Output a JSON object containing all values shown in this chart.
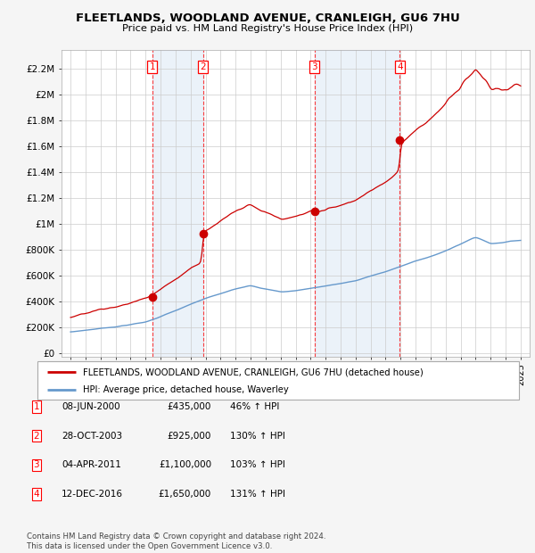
{
  "title": "FLEETLANDS, WOODLAND AVENUE, CRANLEIGH, GU6 7HU",
  "subtitle": "Price paid vs. HM Land Registry's House Price Index (HPI)",
  "ylabel_ticks": [
    "£0",
    "£200K",
    "£400K",
    "£600K",
    "£800K",
    "£1M",
    "£1.2M",
    "£1.4M",
    "£1.6M",
    "£1.8M",
    "£2M",
    "£2.2M"
  ],
  "ytick_values": [
    0,
    200000,
    400000,
    600000,
    800000,
    1000000,
    1200000,
    1400000,
    1600000,
    1800000,
    2000000,
    2200000
  ],
  "x_start_year": 1995,
  "x_end_year": 2025,
  "sale_times": [
    2000.44,
    2003.83,
    2011.25,
    2016.95
  ],
  "sale_prices": [
    435000,
    925000,
    1100000,
    1650000
  ],
  "sale_labels": [
    "1",
    "2",
    "3",
    "4"
  ],
  "red_line_color": "#cc0000",
  "blue_line_color": "#6699cc",
  "shade_color": "#dce8f5",
  "legend_red_label": "FLEETLANDS, WOODLAND AVENUE, CRANLEIGH, GU6 7HU (detached house)",
  "legend_blue_label": "HPI: Average price, detached house, Waverley",
  "table_rows": [
    [
      "1",
      "08-JUN-2000",
      "£435,000",
      "46% ↑ HPI"
    ],
    [
      "2",
      "28-OCT-2003",
      "£925,000",
      "130% ↑ HPI"
    ],
    [
      "3",
      "04-APR-2011",
      "£1,100,000",
      "103% ↑ HPI"
    ],
    [
      "4",
      "12-DEC-2016",
      "£1,650,000",
      "131% ↑ HPI"
    ]
  ],
  "footnote1": "Contains HM Land Registry data © Crown copyright and database right 2024.",
  "footnote2": "This data is licensed under the Open Government Licence v3.0.",
  "plot_bg_color": "#ffffff",
  "grid_color": "#cccccc",
  "fig_bg_color": "#f5f5f5"
}
